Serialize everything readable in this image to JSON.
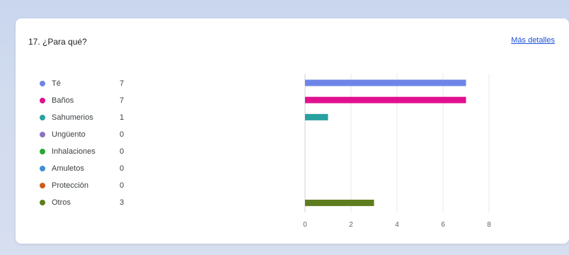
{
  "question": {
    "title": "17. ¿Para qué?",
    "more_details_label": "Más detalles"
  },
  "legend": [
    {
      "label": "Té",
      "count": "7",
      "color": "#6d85e8"
    },
    {
      "label": "Baños",
      "count": "7",
      "color": "#e0108e"
    },
    {
      "label": "Sahumerios",
      "count": "1",
      "color": "#2aa0a0"
    },
    {
      "label": "Ungüento",
      "count": "0",
      "color": "#9071c0"
    },
    {
      "label": "Inhalaciones",
      "count": "0",
      "color": "#27a832"
    },
    {
      "label": "Amuletos",
      "count": "0",
      "color": "#3d8fd6"
    },
    {
      "label": "Protección",
      "count": "0",
      "color": "#d05a1e"
    },
    {
      "label": "Otros",
      "count": "3",
      "color": "#5e7d1e"
    }
  ],
  "chart_data": {
    "type": "bar",
    "orientation": "horizontal",
    "categories": [
      "Té",
      "Baños",
      "Sahumerios",
      "Ungüento",
      "Inhalaciones",
      "Amuletos",
      "Protección",
      "Otros"
    ],
    "values": [
      7,
      7,
      1,
      0,
      0,
      0,
      0,
      3
    ],
    "colors": [
      "#6d85e8",
      "#e0108e",
      "#2aa0a0",
      "#9071c0",
      "#27a832",
      "#3d8fd6",
      "#d05a1e",
      "#5e7d1e"
    ],
    "xlim": [
      0,
      8
    ],
    "x_ticks": [
      0,
      2,
      4,
      6,
      8
    ],
    "grid": true,
    "title": "",
    "xlabel": "",
    "ylabel": ""
  }
}
